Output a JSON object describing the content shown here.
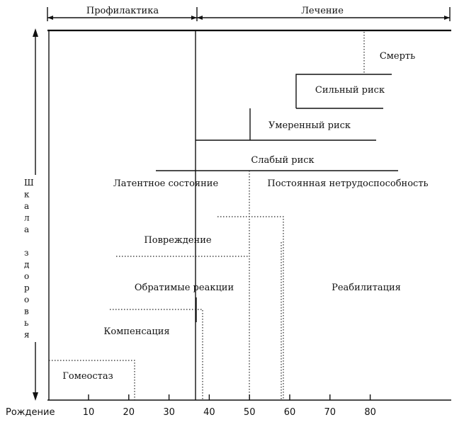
{
  "headers": {
    "prevention": "Профилактика",
    "treatment": "Лечение"
  },
  "vertical_axis_label": [
    "Ш",
    "к",
    "а",
    "л",
    "а",
    "",
    "з",
    "д",
    "о",
    "р",
    "о",
    "в",
    "ь",
    "я"
  ],
  "zones": {
    "death": "Смерть",
    "high_risk": "Сильный риск",
    "moderate_risk": "Умеренный риск",
    "low_risk": "Слабый риск",
    "latent_state": "Латентное состояние",
    "permanent_disability": "Постоянная нетрудоспособность",
    "damage": "Повреждение",
    "reversible_reactions": "Обратимые реакции",
    "rehabilitation": "Реабилитация",
    "compensation": "Компенсация",
    "homeostasis": "Гомеостаз"
  },
  "x_axis": {
    "start_label": "Рождение",
    "ticks": [
      "10",
      "20",
      "30",
      "40",
      "50",
      "60",
      "70",
      "80"
    ]
  }
}
